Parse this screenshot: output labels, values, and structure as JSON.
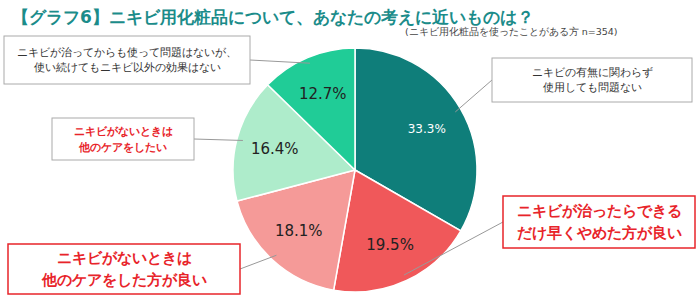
{
  "chart_data": {
    "type": "pie",
    "title": "【グラフ6】ニキビ用化粧品について、あなたの考えに近いものは？",
    "subtitle": "(ニキビ用化粧品を使ったことがある方 n=354)",
    "categories": [
      "ニキビの有無に関わらず\n使用しても問題ない",
      "ニキビが治ったらできる\nだけ早くやめた方が良い",
      "ニキビがないときは\n他のケアをした方が良い",
      "ニキビがないときは\n他のケアをしたい",
      "ニキビが治ってからも使って問題はないが、\n使い続けてもニキビ以外の効果はない"
    ],
    "values": [
      33.3,
      19.5,
      18.1,
      16.4,
      12.7
    ],
    "value_labels": [
      "33.3%",
      "19.5%",
      "18.1%",
      "16.4%",
      "12.7%"
    ],
    "colors": [
      "#0f7e7a",
      "#f0585a",
      "#f59a98",
      "#aeeccb",
      "#20cc97"
    ],
    "data_labels": true
  }
}
